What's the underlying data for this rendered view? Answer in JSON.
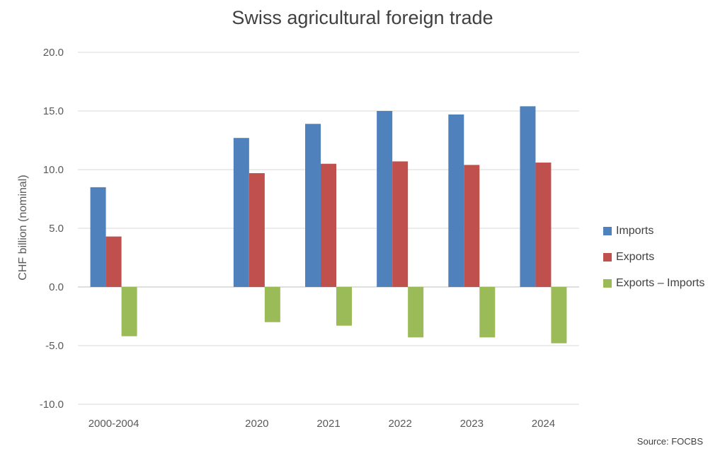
{
  "chart_data": {
    "type": "bar",
    "title": "Swiss agricultural foreign trade",
    "ylabel": "CHF billion (nominal)",
    "xlabel": "",
    "categories": [
      "2000-2004",
      "",
      "2020",
      "2021",
      "2022",
      "2023",
      "2024"
    ],
    "series": [
      {
        "name": "Imports",
        "color": "#4f81bd",
        "values": [
          8.5,
          null,
          12.7,
          13.9,
          15.0,
          14.7,
          15.4
        ]
      },
      {
        "name": "Exports",
        "color": "#c0504d",
        "values": [
          4.3,
          null,
          9.7,
          10.5,
          10.7,
          10.4,
          10.6
        ]
      },
      {
        "name": "Exports – Imports",
        "color": "#9bbb59",
        "values": [
          -4.2,
          null,
          -3.0,
          -3.3,
          -4.3,
          -4.3,
          -4.8
        ]
      }
    ],
    "ylim": [
      -10,
      20
    ],
    "yticks": [
      "-10.0",
      "-5.0",
      "0.0",
      "5.0",
      "10.0",
      "15.0",
      "20.0"
    ],
    "grid": true,
    "legend_position": "right",
    "source": "Source: FOCBS"
  }
}
